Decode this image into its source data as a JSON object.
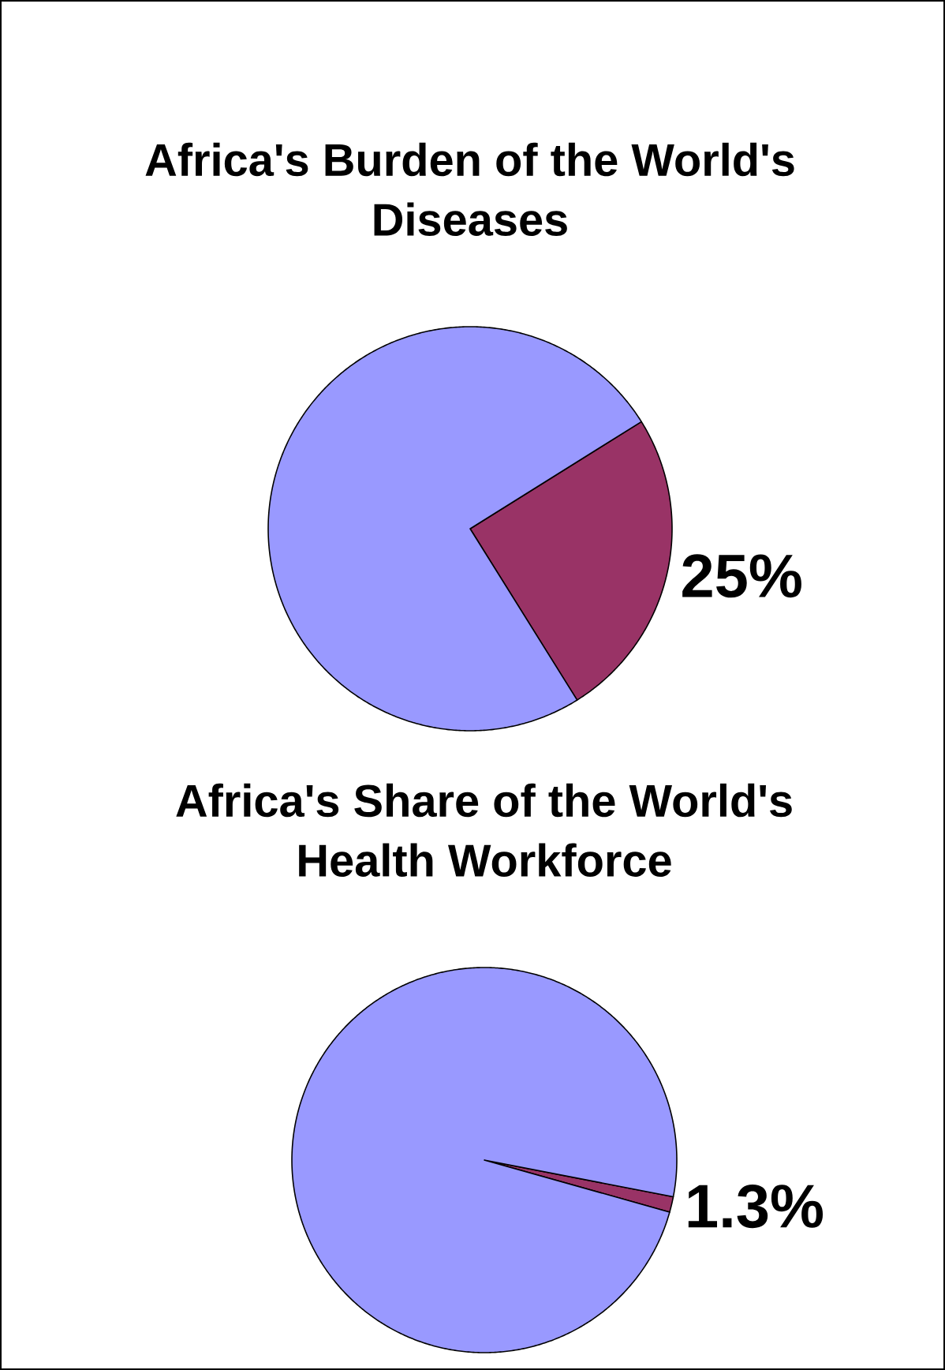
{
  "chart_data": [
    {
      "type": "pie",
      "title": "Africa's Burden of the World's Diseases",
      "categories": [
        null,
        null
      ],
      "values": [
        25,
        75
      ],
      "colors": [
        "#993366",
        "#9999ff"
      ],
      "value_labels": [
        "25%",
        null
      ]
    },
    {
      "type": "pie",
      "title": "Africa's Share of the World's Health Workforce",
      "categories": [
        null,
        null
      ],
      "values": [
        1.3,
        98.7
      ],
      "colors": [
        "#993366",
        "#9999ff"
      ],
      "value_labels": [
        "1.3%",
        null
      ]
    }
  ]
}
